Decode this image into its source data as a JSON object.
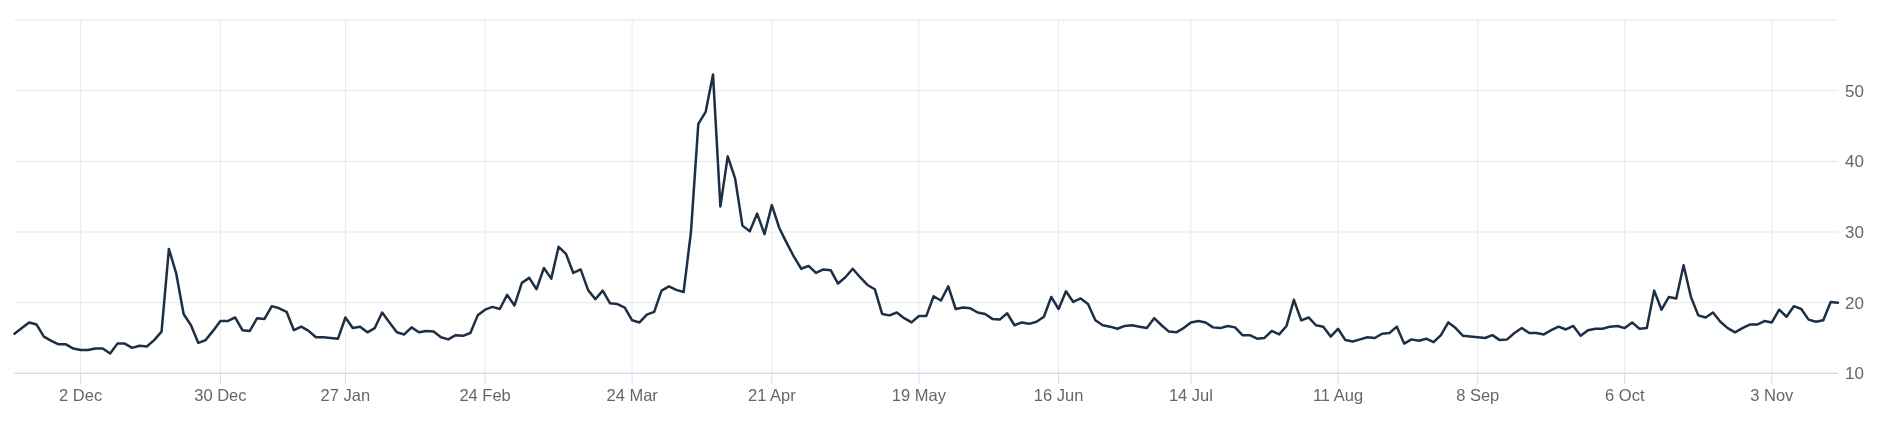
{
  "chart_data": {
    "type": "line",
    "categories": [
      null,
      null,
      null,
      null,
      null,
      null,
      null,
      null,
      null,
      "2 Dec",
      null,
      null,
      null,
      null,
      null,
      null,
      null,
      null,
      null,
      null,
      null,
      null,
      null,
      null,
      null,
      null,
      null,
      null,
      "30 Dec",
      null,
      null,
      null,
      null,
      null,
      null,
      null,
      null,
      null,
      null,
      null,
      null,
      null,
      null,
      null,
      null,
      "27 Jan",
      null,
      null,
      null,
      null,
      null,
      null,
      null,
      null,
      null,
      null,
      null,
      null,
      null,
      null,
      null,
      null,
      null,
      null,
      "24 Feb",
      null,
      null,
      null,
      null,
      null,
      null,
      null,
      null,
      null,
      null,
      null,
      null,
      null,
      null,
      null,
      null,
      null,
      null,
      null,
      "24 Mar",
      null,
      null,
      null,
      null,
      null,
      null,
      null,
      null,
      null,
      null,
      null,
      null,
      null,
      null,
      null,
      null,
      null,
      null,
      "21 Apr",
      null,
      null,
      null,
      null,
      null,
      null,
      null,
      null,
      null,
      null,
      null,
      null,
      null,
      null,
      null,
      null,
      null,
      null,
      null,
      "19 May",
      null,
      null,
      null,
      null,
      null,
      null,
      null,
      null,
      null,
      null,
      null,
      null,
      null,
      null,
      null,
      null,
      null,
      null,
      "16 Jun",
      null,
      null,
      null,
      null,
      null,
      null,
      null,
      null,
      null,
      null,
      null,
      null,
      null,
      null,
      null,
      null,
      null,
      "14 Jul",
      null,
      null,
      null,
      null,
      null,
      null,
      null,
      null,
      null,
      null,
      null,
      null,
      null,
      null,
      null,
      null,
      null,
      null,
      null,
      "11 Aug",
      null,
      null,
      null,
      null,
      null,
      null,
      null,
      null,
      null,
      null,
      null,
      null,
      null,
      null,
      null,
      null,
      null,
      null,
      "8 Sep",
      null,
      null,
      null,
      null,
      null,
      null,
      null,
      null,
      null,
      null,
      null,
      null,
      null,
      null,
      null,
      null,
      null,
      null,
      null,
      "6 Oct",
      null,
      null,
      null,
      null,
      null,
      null,
      null,
      null,
      null,
      null,
      null,
      null,
      null,
      null,
      null,
      null,
      null,
      null,
      null,
      "3 Nov",
      null,
      null,
      null,
      null,
      null,
      null,
      null,
      null,
      null
    ],
    "values": [
      15.6,
      16.4,
      17.2,
      16.9,
      15.2,
      14.6,
      14.1,
      14.1,
      13.5,
      13.3,
      13.3,
      13.5,
      13.5,
      12.8,
      14.2,
      14.2,
      13.6,
      13.9,
      13.8,
      14.7,
      15.9,
      27.6,
      24.1,
      18.4,
      16.8,
      14.3,
      14.7,
      16.0,
      17.4,
      17.4,
      17.9,
      16.1,
      16.0,
      17.8,
      17.7,
      19.5,
      19.2,
      18.7,
      16.1,
      16.6,
      16.0,
      15.1,
      15.1,
      15.0,
      14.9,
      17.9,
      16.4,
      16.6,
      15.8,
      16.4,
      18.6,
      17.2,
      15.8,
      15.5,
      16.5,
      15.8,
      16.0,
      15.9,
      15.1,
      14.8,
      15.4,
      15.3,
      15.7,
      18.2,
      19.0,
      19.4,
      19.1,
      21.1,
      19.6,
      22.8,
      23.5,
      21.9,
      24.9,
      23.4,
      27.9,
      26.9,
      24.2,
      24.7,
      21.8,
      20.5,
      21.7,
      19.9,
      19.8,
      19.3,
      17.5,
      17.2,
      18.3,
      18.7,
      21.7,
      22.3,
      21.8,
      21.5,
      30.0,
      45.3,
      47.0,
      52.3,
      33.6,
      40.7,
      37.6,
      30.9,
      30.1,
      32.6,
      29.7,
      33.8,
      30.6,
      28.5,
      26.5,
      24.8,
      25.2,
      24.2,
      24.7,
      24.6,
      22.7,
      23.6,
      24.8,
      23.6,
      22.5,
      21.9,
      18.4,
      18.2,
      18.6,
      17.8,
      17.2,
      18.1,
      18.1,
      20.9,
      20.3,
      22.3,
      19.1,
      19.3,
      19.2,
      18.6,
      18.4,
      17.7,
      17.6,
      18.5,
      16.8,
      17.2,
      17.0,
      17.3,
      18.0,
      20.8,
      19.1,
      21.6,
      20.1,
      20.6,
      19.8,
      17.5,
      16.8,
      16.6,
      16.3,
      16.7,
      16.8,
      16.6,
      16.4,
      17.8,
      16.8,
      15.9,
      15.8,
      16.4,
      17.2,
      17.4,
      17.2,
      16.5,
      16.4,
      16.7,
      16.5,
      15.4,
      15.4,
      14.9,
      15.0,
      16.0,
      15.5,
      16.7,
      20.4,
      17.5,
      17.9,
      16.8,
      16.6,
      15.2,
      16.3,
      14.7,
      14.5,
      14.8,
      15.1,
      15.0,
      15.6,
      15.7,
      16.6,
      14.2,
      14.8,
      14.6,
      14.9,
      14.4,
      15.4,
      17.2,
      16.4,
      15.3,
      15.2,
      15.1,
      15.0,
      15.4,
      14.7,
      14.8,
      15.7,
      16.4,
      15.7,
      15.7,
      15.5,
      16.1,
      16.6,
      16.2,
      16.7,
      15.3,
      16.1,
      16.3,
      16.3,
      16.6,
      16.7,
      16.4,
      17.2,
      16.3,
      16.4,
      21.7,
      19.0,
      20.8,
      20.6,
      25.3,
      20.8,
      18.2,
      17.9,
      18.6,
      17.3,
      16.4,
      15.8,
      16.4,
      16.9,
      16.9,
      17.4,
      17.2,
      19.0,
      18.0,
      19.5,
      19.1,
      17.6,
      17.3,
      17.5,
      20.1,
      20.0
    ],
    "color": "#1c2f45",
    "ylim": [
      10,
      60
    ],
    "yticks": [
      10,
      20,
      30,
      40,
      50,
      {
        "value": 60,
        "label": null
      }
    ],
    "grid": true
  }
}
